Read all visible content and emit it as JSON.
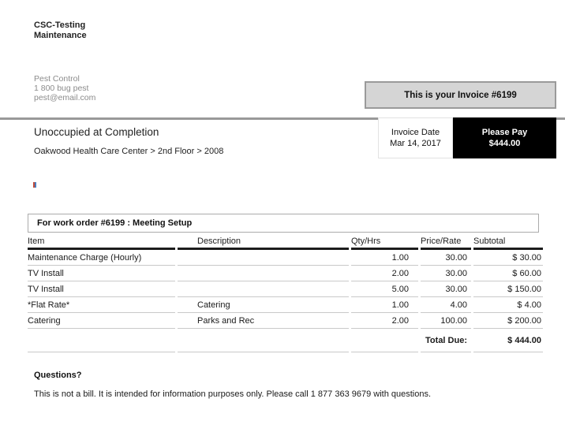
{
  "header": {
    "company_name_line1": "CSC-Testing",
    "company_name_line2": "Maintenance",
    "vendor": {
      "name": "Pest Control",
      "phone": "1 800 bug pest",
      "email": "pest@email.com"
    },
    "invoice_banner": "This is your Invoice #6199"
  },
  "invoice_meta": {
    "date_label": "Invoice Date",
    "date_value": "Mar 14, 2017",
    "pay_label": "Please Pay",
    "pay_amount": "$444.00"
  },
  "work_order": {
    "title": "Unoccupied at Completion",
    "location_breadcrumb": "Oakwood Health Care Center > 2nd Floor > 2008",
    "table_caption": "For work order #6199 : Meeting Setup"
  },
  "line_items": {
    "columns": [
      "Item",
      "Description",
      "Qty/Hrs",
      "Price/Rate",
      "Subtotal"
    ],
    "rows": [
      {
        "item": "Maintenance Charge (Hourly)",
        "description": "",
        "qty": "1.00",
        "rate": "30.00",
        "subtotal": "$ 30.00"
      },
      {
        "item": "TV Install",
        "description": "",
        "qty": "2.00",
        "rate": "30.00",
        "subtotal": "$ 60.00"
      },
      {
        "item": "TV Install",
        "description": "",
        "qty": "5.00",
        "rate": "30.00",
        "subtotal": "$ 150.00"
      },
      {
        "item": "*Flat Rate*",
        "description": "Catering",
        "qty": "1.00",
        "rate": "4.00",
        "subtotal": "$ 4.00"
      },
      {
        "item": "Catering",
        "description": "Parks and Rec",
        "qty": "2.00",
        "rate": "100.00",
        "subtotal": "$ 200.00"
      }
    ],
    "total_label": "Total Due:",
    "total_amount": "$ 444.00"
  },
  "footer": {
    "heading": "Questions?",
    "disclaimer": "This is not a bill. It is intended for information purposes only. Please call 1 877 363 9679 with questions."
  },
  "colors": {
    "banner_background": "#d5d5d5",
    "banner_border": "#9a9a9a",
    "divider_gray": "#999999",
    "pay_box_background": "#000000",
    "pay_box_text": "#ffffff",
    "muted_text": "#8b8b8b",
    "header_rule": "#1c1c1c",
    "row_separator": "#c9c9c9"
  }
}
